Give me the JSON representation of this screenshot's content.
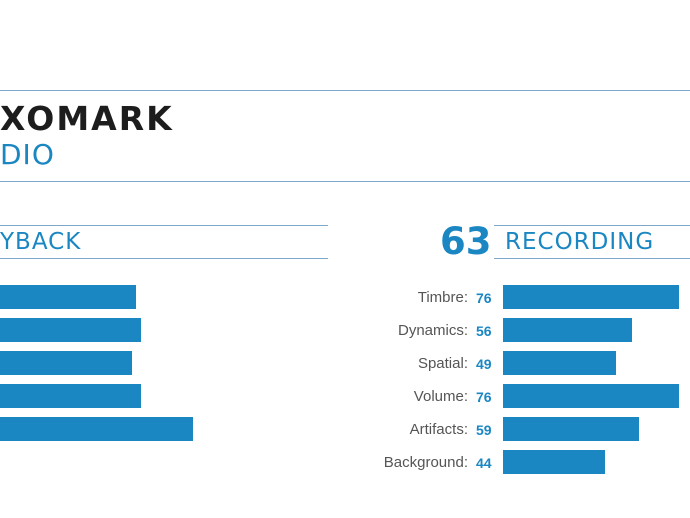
{
  "header": {
    "brand": "XOMARK",
    "subtitle": "DIO"
  },
  "colors": {
    "accent": "#1a86c2",
    "rule": "#7fa8c8",
    "brand_text": "#1d1d1d"
  },
  "chart_data": [
    {
      "type": "bar",
      "orientation": "horizontal",
      "title": "YBACK",
      "series": [
        {
          "values": [
            60,
            62,
            58,
            62,
            85
          ]
        }
      ],
      "xlim": [
        0,
        100
      ],
      "grid": false
    },
    {
      "type": "bar",
      "orientation": "horizontal",
      "title": "RECORDING",
      "score": "63",
      "categories": [
        "Timbre:",
        "Dynamics:",
        "Spatial:",
        "Volume:",
        "Artifacts:",
        "Background:"
      ],
      "value_labels": [
        "76",
        "56",
        "49",
        "76",
        "59",
        "44"
      ],
      "values": [
        76,
        56,
        49,
        76,
        59,
        44
      ],
      "xlim": [
        0,
        100
      ],
      "grid": false
    }
  ]
}
